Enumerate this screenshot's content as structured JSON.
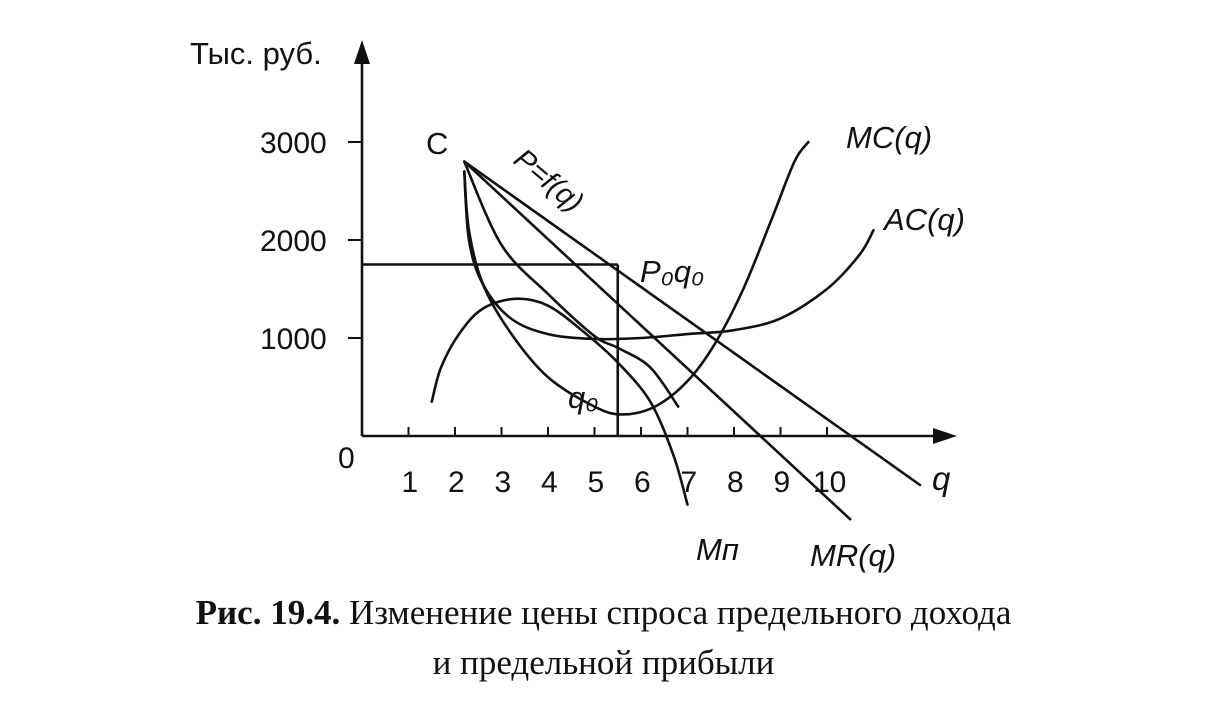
{
  "chart_data": {
    "type": "line",
    "ylabel": "Тыс. руб.",
    "xlabel": "q",
    "origin_label": "0",
    "x_ticks": [
      "1",
      "2",
      "3",
      "4",
      "5",
      "6",
      "7",
      "8",
      "9",
      "10"
    ],
    "y_ticks": [
      "1000",
      "2000",
      "3000"
    ],
    "xlim": [
      0,
      12.5
    ],
    "ylim": [
      0,
      3800
    ],
    "grid": false,
    "series": [
      {
        "name": "P=f(q)",
        "label_extra": "",
        "points": [
          [
            2.2,
            2800
          ],
          [
            12,
            -500
          ]
        ]
      },
      {
        "name": "MR(q)",
        "points": [
          [
            2.2,
            2800
          ],
          [
            10.5,
            -850
          ]
        ]
      },
      {
        "name": "MC(q)",
        "points": [
          [
            2.2,
            2700
          ],
          [
            2.3,
            2100
          ],
          [
            2.6,
            1550
          ],
          [
            3.2,
            1050
          ],
          [
            4.0,
            600
          ],
          [
            5.0,
            300
          ],
          [
            5.6,
            220
          ],
          [
            6.3,
            300
          ],
          [
            7.0,
            560
          ],
          [
            7.6,
            950
          ],
          [
            8.2,
            1500
          ],
          [
            8.8,
            2200
          ],
          [
            9.3,
            2800
          ],
          [
            9.6,
            3000
          ]
        ]
      },
      {
        "name": "AC(q)",
        "points": [
          [
            2.2,
            2700
          ],
          [
            2.3,
            2000
          ],
          [
            2.6,
            1550
          ],
          [
            3.2,
            1200
          ],
          [
            4.0,
            1040
          ],
          [
            5.0,
            990
          ],
          [
            6.0,
            1000
          ],
          [
            7.0,
            1040
          ],
          [
            8.0,
            1080
          ],
          [
            9.0,
            1200
          ],
          [
            10.0,
            1500
          ],
          [
            10.7,
            1850
          ],
          [
            11.0,
            2100
          ]
        ]
      },
      {
        "name": "Mп",
        "points": [
          [
            1.5,
            350
          ],
          [
            1.7,
            700
          ],
          [
            2.1,
            1050
          ],
          [
            2.6,
            1300
          ],
          [
            3.3,
            1400
          ],
          [
            4.0,
            1330
          ],
          [
            4.8,
            1050
          ],
          [
            5.5,
            750
          ],
          [
            6.2,
            350
          ],
          [
            6.7,
            -200
          ],
          [
            7.0,
            -700
          ]
        ]
      },
      {
        "name": "",
        "points": [
          [
            2.2,
            2800
          ],
          [
            3.0,
            1950
          ],
          [
            4.0,
            1450
          ],
          [
            5.0,
            1020
          ],
          [
            5.5,
            900
          ],
          [
            6.2,
            700
          ],
          [
            6.8,
            300
          ]
        ]
      }
    ],
    "reference": {
      "q0": 5.5,
      "P0": 1750
    },
    "annotations": {
      "point_c": "C",
      "demand_label": "P=f(q)",
      "p0q0_label": "P₀q₀",
      "q0_label": "q₀",
      "mc_label": "MC(q)",
      "ac_label": "AC(q)",
      "mr_label": "MR(q)",
      "mp_label": "Mп"
    }
  },
  "caption": {
    "prefix": "Рис. 19.4.",
    "line1": "Изменение цены спроса предельного дохода",
    "line2": "и предельной прибыли"
  }
}
